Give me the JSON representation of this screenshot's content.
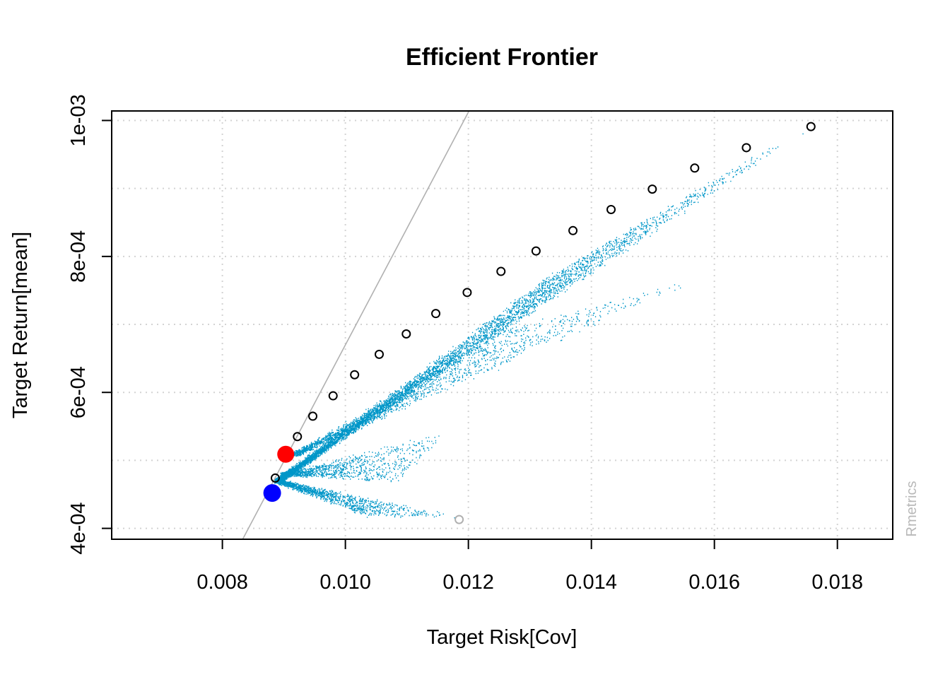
{
  "chart_data": {
    "type": "scatter",
    "title": "Efficient Frontier",
    "xlabel": "Target Risk[Cov]",
    "ylabel": "Target Return[mean]",
    "xlim": [
      0.0062,
      0.0189
    ],
    "ylim": [
      0.000384,
      0.001014
    ],
    "x_ticks": [
      {
        "value": 0.008,
        "label": "0.008"
      },
      {
        "value": 0.01,
        "label": "0.010"
      },
      {
        "value": 0.012,
        "label": "0.012"
      },
      {
        "value": 0.014,
        "label": "0.014"
      },
      {
        "value": 0.016,
        "label": "0.016"
      },
      {
        "value": 0.018,
        "label": "0.018"
      }
    ],
    "y_ticks": [
      {
        "value": 0.0004,
        "label": "4e-04"
      },
      {
        "value": 0.0006,
        "label": "6e-04"
      },
      {
        "value": 0.0008,
        "label": "8e-04"
      },
      {
        "value": 0.001,
        "label": "1e-03"
      }
    ],
    "y_minor_grid": [
      0.0005,
      0.0007,
      0.0009
    ],
    "grid": true,
    "watermark": "Rmetrics",
    "colors": {
      "frontier_points": "#000000",
      "feasible_cloud": "#0096c8",
      "tangency_line": "#b0b0b0",
      "tangency_portfolio": "#ff0000",
      "min_variance_portfolio": "#0000ff",
      "asset_point": "#b0b0b0",
      "grid": "#d3d3d3"
    },
    "series": [
      {
        "role": "frontier",
        "x": [
          0.00886,
          0.00922,
          0.00947,
          0.0098,
          0.01015,
          0.01055,
          0.01099,
          0.01147,
          0.01198,
          0.01253,
          0.0131,
          0.0137,
          0.01432,
          0.01499,
          0.01568,
          0.01652,
          0.01757
        ],
        "y": [
          0.000474,
          0.000535,
          0.000565,
          0.000595,
          0.000626,
          0.000656,
          0.000686,
          0.000716,
          0.000747,
          0.000778,
          0.000808,
          0.000838,
          0.000869,
          0.000899,
          0.00093,
          0.00096,
          0.000991
        ]
      },
      {
        "role": "tangency_portfolio",
        "x": [
          0.00903
        ],
        "y": [
          0.000509
        ]
      },
      {
        "role": "min_variance_portfolio",
        "x": [
          0.00881
        ],
        "y": [
          0.000452
        ]
      },
      {
        "role": "asset",
        "x": [
          0.01185
        ],
        "y": [
          0.000413
        ]
      }
    ],
    "tangency_line": {
      "x": [
        0.00833,
        0.01201
      ],
      "y": [
        0.000384,
        0.001014
      ]
    },
    "feasible_cloud": {
      "count": 9000,
      "clusters": [
        {
          "anchor": [
            0.0089,
            0.00047
          ],
          "end": [
            0.0176,
            0.000995
          ],
          "lower_end": [
            0.0133,
            0.00077
          ],
          "weight": 0.55
        },
        {
          "anchor": [
            0.0092,
            0.00051
          ],
          "end": [
            0.0158,
            0.000768
          ],
          "lower_end": [
            0.0125,
            0.00069
          ],
          "weight": 0.18
        },
        {
          "anchor": [
            0.009,
            0.00048
          ],
          "end": [
            0.0117,
            0.000545
          ],
          "lower_end": [
            0.0108,
            0.00047
          ],
          "weight": 0.12
        },
        {
          "anchor": [
            0.0089,
            0.00047
          ],
          "end": [
            0.0118,
            0.000418
          ],
          "lower_end": [
            0.0103,
            0.00042
          ],
          "weight": 0.15
        }
      ]
    }
  }
}
